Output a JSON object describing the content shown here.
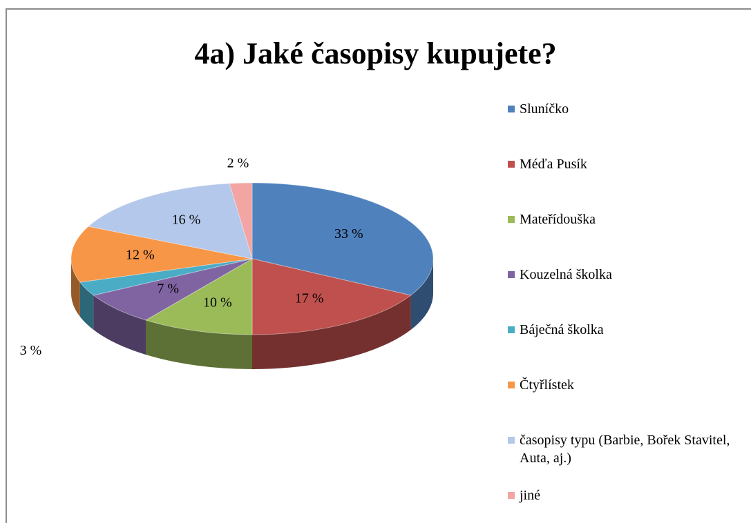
{
  "chart_data": {
    "type": "pie3d",
    "title": "4a) Jaké časopisy kupujete?",
    "categories": [
      "Sluníčko",
      "Méďa Pusík",
      "Mateřídouška",
      "Kouzelná školka",
      "Báječná školka",
      "Čtyřlístek",
      "časopisy typu (Barbie, Bořek Stavitel, Auta, aj.)",
      "jiné"
    ],
    "values": [
      33,
      17,
      10,
      7,
      3,
      12,
      16,
      2
    ],
    "value_labels": [
      "33 %",
      "17 %",
      "10 %",
      "7 %",
      "3 %",
      "12 %",
      "16 %",
      "2 %"
    ],
    "colors": [
      "#4f81bd",
      "#c0504d",
      "#9bbb59",
      "#8064a2",
      "#4bacc6",
      "#f79646",
      "#b3c8ea",
      "#f2a5a3"
    ],
    "legend": "right"
  }
}
